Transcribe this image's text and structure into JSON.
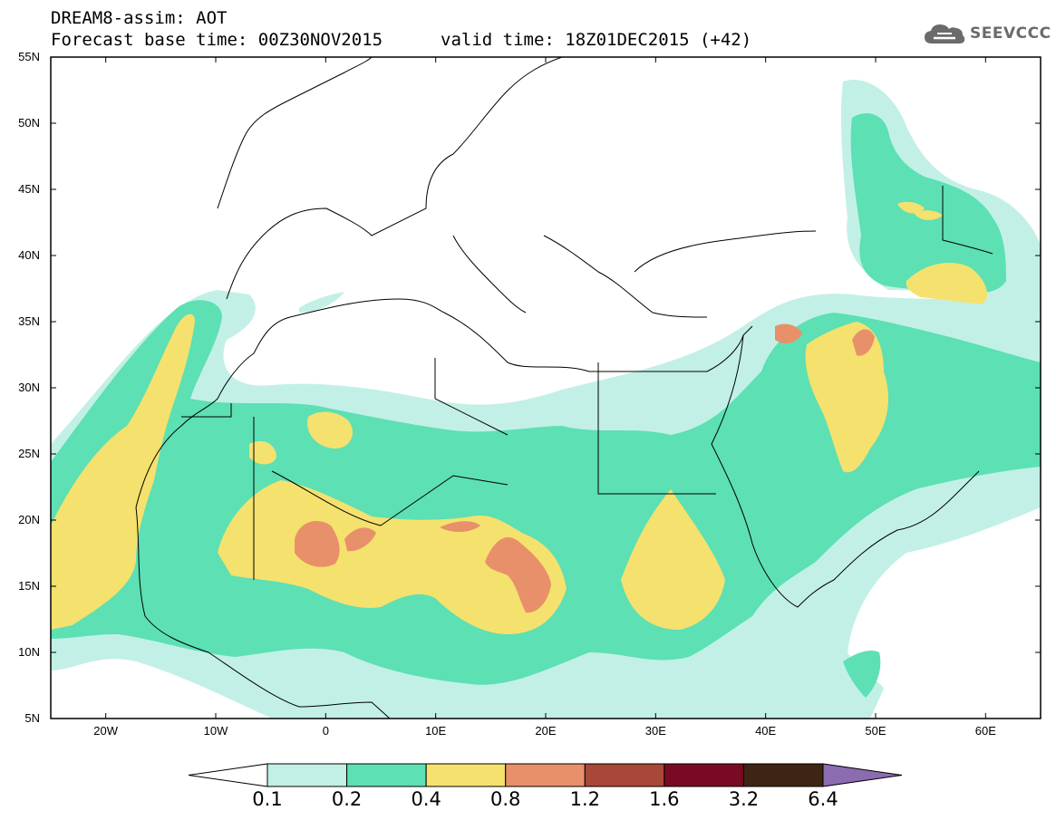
{
  "title_line1": "DREAM8-assim: AOT",
  "title_line2": "Forecast base time: 00Z30NOV2015",
  "valid_time": "valid time: 18Z01DEC2015 (+42)",
  "logo": {
    "text": "SEEVCCC",
    "icon": "cloud-icon",
    "color": "#6b6b6b"
  },
  "map": {
    "lon_range": [
      -25,
      65
    ],
    "lat_range": [
      5,
      55
    ],
    "lat_ticks": [
      "55N",
      "50N",
      "45N",
      "40N",
      "35N",
      "30N",
      "25N",
      "20N",
      "15N",
      "10N",
      "5N"
    ],
    "lon_ticks": [
      "20W",
      "10W",
      "0",
      "10E",
      "20E",
      "30E",
      "40E",
      "50E",
      "60E"
    ],
    "grid": false
  },
  "colorbar": {
    "labels": [
      "0.1",
      "0.2",
      "0.4",
      "0.8",
      "1.2",
      "1.6",
      "3.2",
      "6.4"
    ],
    "colors": {
      "under": "#ffffff",
      "bins": [
        "#c2f0e6",
        "#5ce0b4",
        "#f5e16e",
        "#e8906a",
        "#a84838",
        "#7a0a24",
        "#3e2412"
      ],
      "over": "#8c6cb0"
    }
  }
}
